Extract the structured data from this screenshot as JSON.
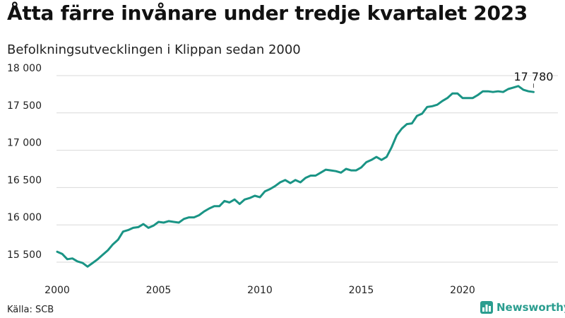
{
  "header": {
    "title": "Åtta färre invånare under tredje kvartalet 2023",
    "subtitle": "Befolkningsutvecklingen i Klippan sedan 2000"
  },
  "footer": {
    "source": "Källa: SCB",
    "brand": "Newsworthy"
  },
  "colors": {
    "line": "#1a9485",
    "grid": "#d9d9d9",
    "brand": "#2a9d8f"
  },
  "chart_data": {
    "type": "line",
    "x_label_ticks": [
      "2000",
      "2005",
      "2010",
      "2015",
      "2020"
    ],
    "x_ticks": [
      2000,
      2005,
      2010,
      2015,
      2020
    ],
    "y_ticks": [
      15500,
      16000,
      16500,
      17000,
      17500,
      18000
    ],
    "y_tick_labels": [
      "15 500",
      "16 000",
      "16 500",
      "17 000",
      "17 500",
      "18 000"
    ],
    "ylim": [
      15400,
      18050
    ],
    "xlim": [
      2000,
      2024
    ],
    "grid": true,
    "end_label": "17 780",
    "x": [
      2000.0,
      2000.25,
      2000.5,
      2000.75,
      2001.0,
      2001.25,
      2001.5,
      2001.75,
      2002.0,
      2002.25,
      2002.5,
      2002.75,
      2003.0,
      2003.25,
      2003.5,
      2003.75,
      2004.0,
      2004.25,
      2004.5,
      2004.75,
      2005.0,
      2005.25,
      2005.5,
      2005.75,
      2006.0,
      2006.25,
      2006.5,
      2006.75,
      2007.0,
      2007.25,
      2007.5,
      2007.75,
      2008.0,
      2008.25,
      2008.5,
      2008.75,
      2009.0,
      2009.25,
      2009.5,
      2009.75,
      2010.0,
      2010.25,
      2010.5,
      2010.75,
      2011.0,
      2011.25,
      2011.5,
      2011.75,
      2012.0,
      2012.25,
      2012.5,
      2012.75,
      2013.0,
      2013.25,
      2013.5,
      2013.75,
      2014.0,
      2014.25,
      2014.5,
      2014.75,
      2015.0,
      2015.25,
      2015.5,
      2015.75,
      2016.0,
      2016.25,
      2016.5,
      2016.75,
      2017.0,
      2017.25,
      2017.5,
      2017.75,
      2018.0,
      2018.25,
      2018.5,
      2018.75,
      2019.0,
      2019.25,
      2019.5,
      2019.75,
      2020.0,
      2020.25,
      2020.5,
      2020.75,
      2021.0,
      2021.25,
      2021.5,
      2021.75,
      2022.0,
      2022.25,
      2022.5,
      2022.75,
      2023.0,
      2023.25,
      2023.5
    ],
    "series": [
      {
        "values": [
          15640,
          15610,
          15540,
          15550,
          15510,
          15490,
          15440,
          15490,
          15540,
          15600,
          15660,
          15740,
          15800,
          15910,
          15930,
          15960,
          15970,
          16010,
          15960,
          15990,
          16040,
          16030,
          16050,
          16040,
          16030,
          16080,
          16100,
          16100,
          16130,
          16180,
          16220,
          16250,
          16250,
          16320,
          16300,
          16340,
          16280,
          16340,
          16360,
          16390,
          16370,
          16450,
          16480,
          16520,
          16570,
          16600,
          16560,
          16600,
          16570,
          16630,
          16660,
          16660,
          16700,
          16740,
          16730,
          16720,
          16700,
          16750,
          16730,
          16730,
          16770,
          16840,
          16870,
          16910,
          16870,
          16910,
          17040,
          17200,
          17290,
          17350,
          17360,
          17460,
          17490,
          17580,
          17590,
          17610,
          17660,
          17700,
          17760,
          17760,
          17700,
          17700,
          17700,
          17740,
          17790,
          17790,
          17780,
          17790,
          17780,
          17820,
          17840,
          17860,
          17810,
          17790,
          17780
        ]
      }
    ]
  }
}
